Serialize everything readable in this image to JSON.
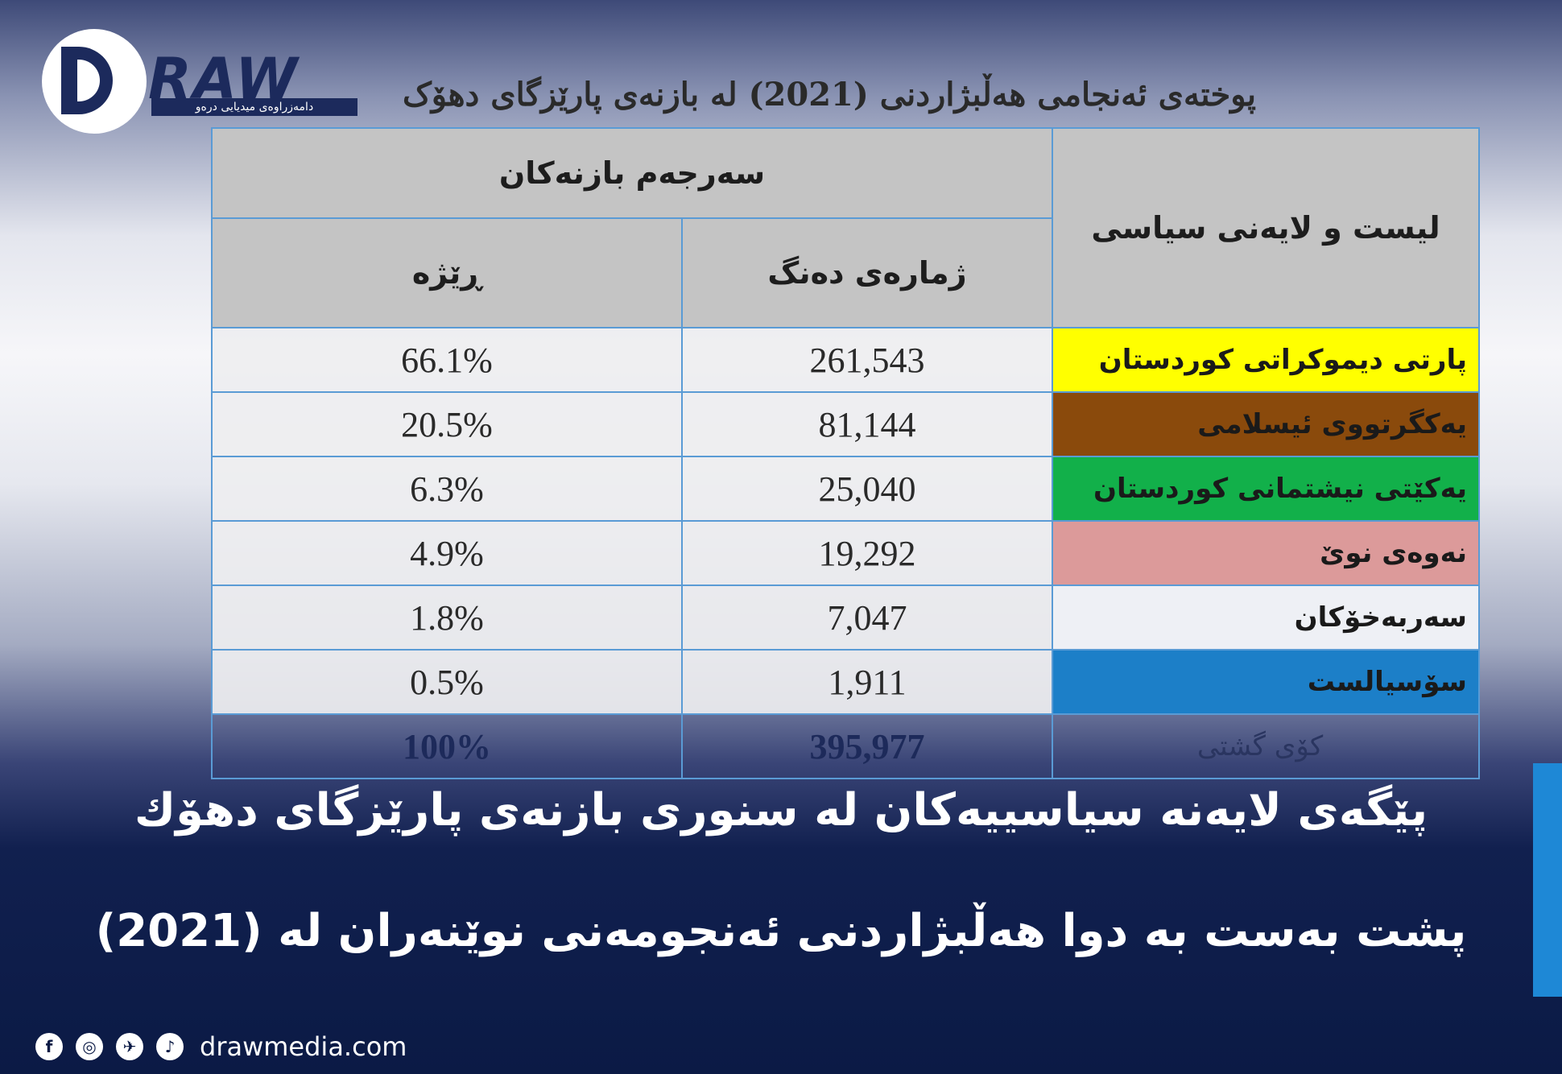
{
  "logo": {
    "wordmark": "RAW",
    "tagline": "دامەزراوەی میدیایی درەو"
  },
  "table": {
    "title": "پوختەی ئەنجامی هەڵبژاردنی (2021) لە بازنەی پارێزگای دهۆک",
    "header": {
      "party_column": "لیست و لایەنی سیاسی",
      "group": "سەرجەم بازنەکان",
      "votes": "ژمارەی دەنگ",
      "percent": "ڕێژە"
    },
    "rows": [
      {
        "party": "پارتی دیموکراتی کوردستان",
        "votes": "261,543",
        "percent": "66.1%",
        "color": "#ffff00"
      },
      {
        "party": "یەکگرتووی ئیسلامی",
        "votes": "81,144",
        "percent": "20.5%",
        "color": "#8a4a0c"
      },
      {
        "party": "یەکێتی نیشتمانی کوردستان",
        "votes": "25,040",
        "percent": "6.3%",
        "color": "#12b04a"
      },
      {
        "party": "نەوەی نوێ",
        "votes": "19,292",
        "percent": "4.9%",
        "color": "#dc9a9a"
      },
      {
        "party": "سەربەخۆکان",
        "votes": "7,047",
        "percent": "1.8%",
        "color": "#eef0f5"
      },
      {
        "party": "سۆسیالست",
        "votes": "1,911",
        "percent": "0.5%",
        "color": "#1c7fc8"
      }
    ],
    "total": {
      "label": "کۆی گشتی",
      "votes": "395,977",
      "percent": "100%"
    }
  },
  "headline": {
    "line1": "پێگەی لایەنە سیاسییەکان لە سنوری بازنەی پارێزگای دهۆك",
    "line2": "پشت بەست بە دوا هەڵبژاردنی ئەنجومەنی نوێنەران لە (2021)"
  },
  "footer": {
    "social_icons": [
      "facebook-icon",
      "instagram-icon",
      "twitter-icon",
      "tiktok-icon"
    ],
    "website": "drawmedia.com"
  }
}
